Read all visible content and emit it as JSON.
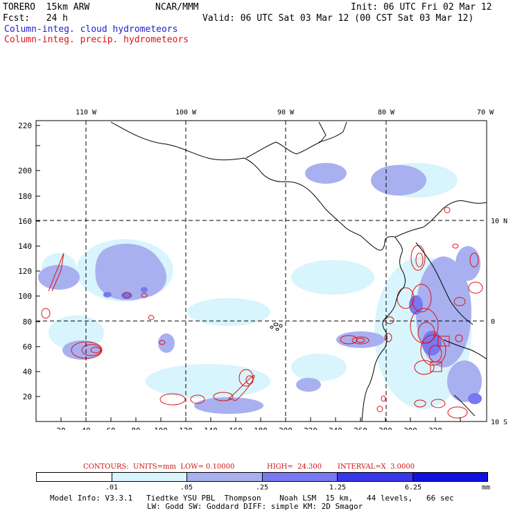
{
  "header": {
    "model": "TORERO  15km ARW",
    "center": "NCAR/MMM",
    "init": "Init: 06 UTC Fri 02 Mar 12",
    "fcst": "Fcst:   24 h",
    "valid": "Valid: 06 UTC Sat 03 Mar 12 (00 CST Sat 03 Mar 12)",
    "field1": "Column-integ. cloud hydrometeors",
    "field2": "Column-integ. precip. hydrometeors"
  },
  "map": {
    "lon_labels": [
      "110 W",
      "100 W",
      "90 W",
      "80 W",
      "70 W"
    ],
    "lat_labels": [
      "10 N",
      "0",
      "10 S"
    ],
    "x_ticks": [
      "20",
      "40",
      "60",
      "80",
      "100",
      "120",
      "140",
      "160",
      "180",
      "200",
      "220",
      "240",
      "260",
      "280",
      "300",
      "320"
    ],
    "y_ticks": [
      "20",
      "40",
      "60",
      "80",
      "100",
      "120",
      "140",
      "160",
      "180",
      "200",
      "220"
    ]
  },
  "contours": {
    "units": "CONTOURS:  UNITS=mm  LOW= 0.10000",
    "high": "HIGH=  24.300",
    "interval": "INTERVAL=X  3.0000"
  },
  "colorbar": {
    "labels": [
      ".01",
      ".05",
      ".25",
      "1.25",
      "6.25"
    ],
    "unit": "mm",
    "colors": [
      "#ffffff",
      "#d8f4fc",
      "#a8b0f0",
      "#7878f0",
      "#3838e8",
      "#1010e0"
    ]
  },
  "footer": {
    "line1": "Model Info: V3.3.1   Tiedtke YSU PBL  Thompson    Noah LSM  15 km,   44 levels,   66 sec",
    "line2": "LW: Godd SW: Goddard DIFF: simple KM: 2D Smagor"
  }
}
